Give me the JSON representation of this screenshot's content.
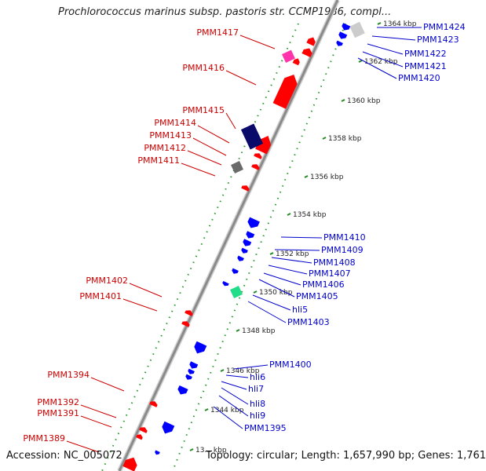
{
  "title": "Prochlorococcus marinus subsp. pastoris str. CCMP1986, compl...",
  "footer": {
    "accession": "Accession: NC_005072",
    "summary": "Topology: circular; Length: 1,657,990 bp; Genes: 1,761"
  },
  "colors": {
    "forward": "#ff0000",
    "reverse": "#0000ff",
    "backbone": "#8c8c8c",
    "tick": "#228b22",
    "label_forward": "#cc0000",
    "label_reverse": "#0000cc"
  },
  "scale_ticks": [
    {
      "label": "1364 kbp"
    },
    {
      "label": "1362 kbp"
    },
    {
      "label": "1360 kbp"
    },
    {
      "label": "1358 kbp"
    },
    {
      "label": "1356 kbp"
    },
    {
      "label": "1354 kbp"
    },
    {
      "label": "1352 kbp"
    },
    {
      "label": "1350 kbp"
    },
    {
      "label": "1348 kbp"
    },
    {
      "label": "1346 kbp"
    },
    {
      "label": "1344 kbp"
    },
    {
      "label": "13... kbp"
    }
  ],
  "forward_genes": [
    "PMM1417",
    "PMM1416",
    "PMM1415",
    "PMM1414",
    "PMM1413",
    "PMM1412",
    "PMM1411",
    "PMM1402",
    "PMM1401",
    "PMM1394",
    "PMM1392",
    "PMM1391",
    "PMM1389"
  ],
  "reverse_genes": [
    "PMM1424",
    "PMM1423",
    "PMM1422",
    "PMM1421",
    "PMM1420",
    "PMM1410",
    "PMM1409",
    "PMM1408",
    "PMM1407",
    "PMM1406",
    "PMM1405",
    "hli5",
    "PMM1403",
    "PMM1400",
    "hli6",
    "hli7",
    "hli8",
    "hli9",
    "PMM1395"
  ]
}
